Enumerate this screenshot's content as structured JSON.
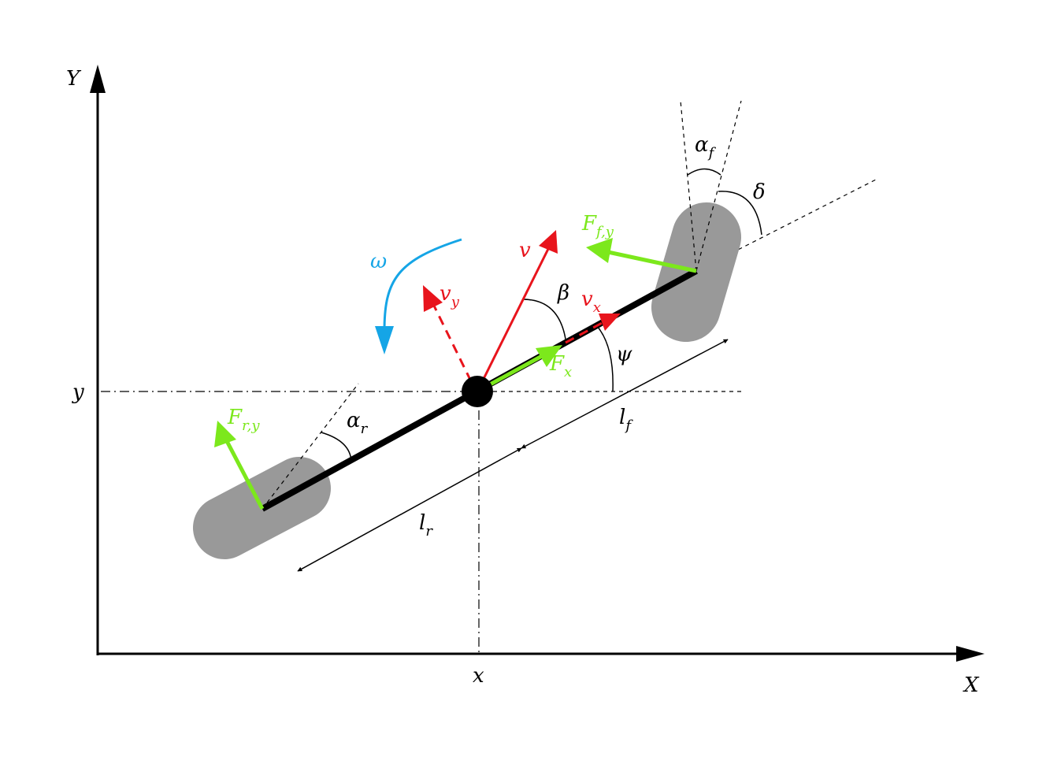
{
  "colors": {
    "axis": "#000000",
    "wheel": "#999999",
    "velocity": "#e8141c",
    "force": "#7ce81c",
    "yaw_rate": "#15a5e6"
  },
  "axes": {
    "x_axis_label": "X",
    "y_axis_label": "Y",
    "x_position_label": "x",
    "y_position_label": "y"
  },
  "velocity": {
    "v_label": "v",
    "vx_base": "v",
    "vx_sub": "x",
    "vy_base": "v",
    "vy_sub": "y"
  },
  "forces": {
    "fx_base": "F",
    "fx_sub": "x",
    "ffy_base": "F",
    "ffy_sub": "f,y",
    "fry_base": "F",
    "fry_sub": "r,y"
  },
  "angles": {
    "beta": "β",
    "psi": "ψ",
    "delta": "δ",
    "omega": "ω",
    "alpha_f_base": "α",
    "alpha_f_sub": "f",
    "alpha_r_base": "α",
    "alpha_r_sub": "r"
  },
  "lengths": {
    "lf_base": "l",
    "lf_sub": "f",
    "lr_base": "l",
    "lr_sub": "r"
  }
}
